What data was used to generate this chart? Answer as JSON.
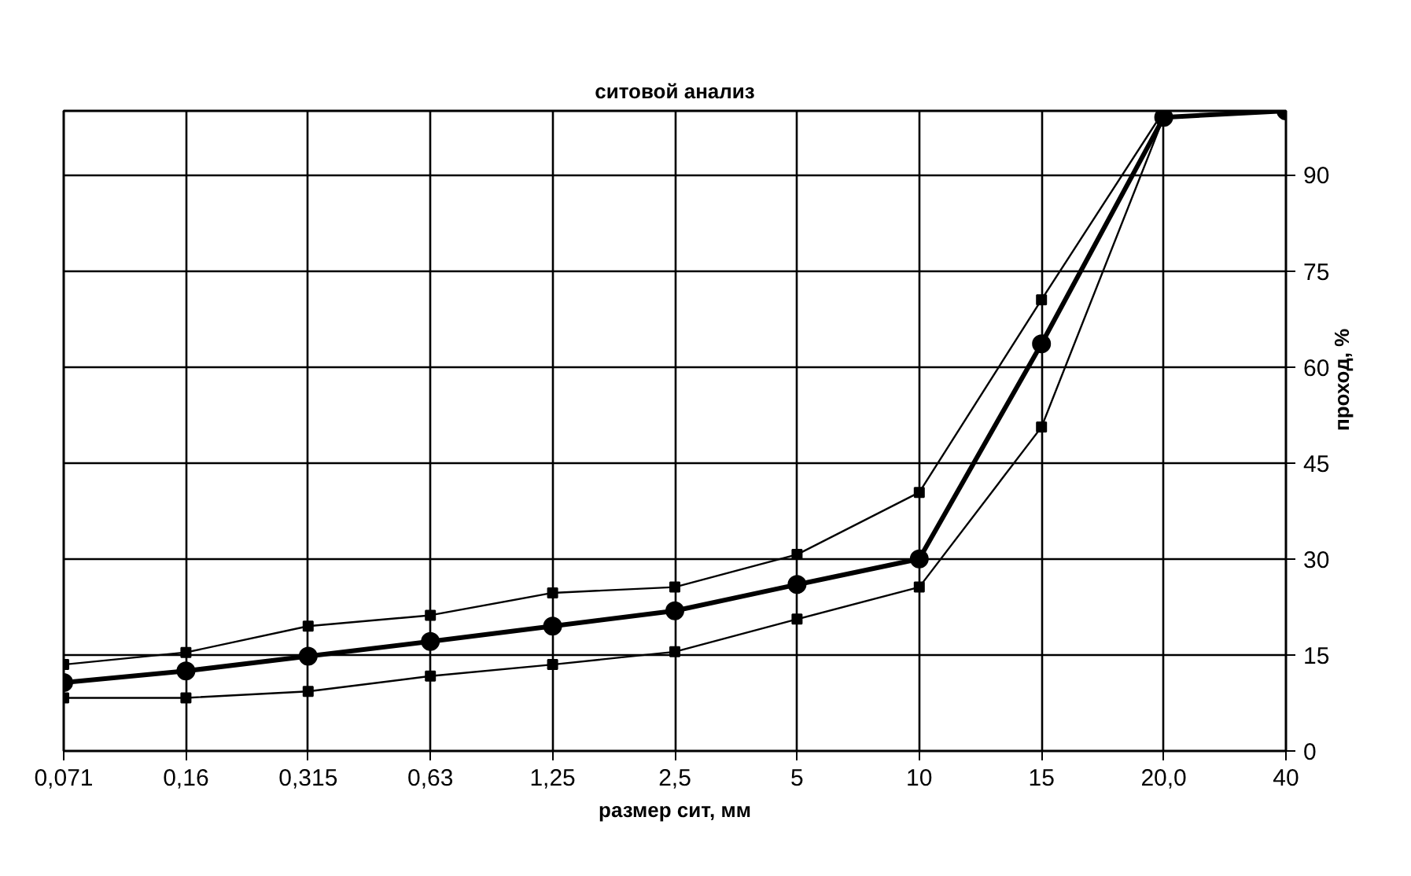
{
  "chart_data": {
    "type": "line",
    "title": "ситовой анализ",
    "xlabel": "размер сит, мм",
    "ylabel": "проход, %",
    "categories": [
      "0,071",
      "0,16",
      "0,315",
      "0,63",
      "1,25",
      "2,5",
      "5",
      "10",
      "15",
      "20,0",
      "40"
    ],
    "series": [
      {
        "color": "#000000",
        "marker": "circle",
        "values": [
          10.7,
          12.5,
          14.8,
          17.1,
          19.5,
          21.9,
          26.0,
          30.0,
          63.6,
          99,
          100
        ]
      },
      {
        "color": "#000000",
        "marker": "square",
        "values": [
          13.5,
          15.4,
          19.5,
          21.2,
          24.7,
          25.6,
          30.7,
          40.4,
          70.5,
          100,
          null
        ]
      },
      {
        "color": "#000000",
        "marker": "square",
        "values": [
          8.3,
          8.3,
          9.3,
          11.7,
          13.5,
          15.5,
          20.6,
          25.6,
          50.6,
          99,
          null
        ]
      }
    ],
    "ylim": [
      0,
      100
    ],
    "yticks": [
      0,
      15,
      30,
      45,
      60,
      75,
      90
    ],
    "grid": true
  }
}
